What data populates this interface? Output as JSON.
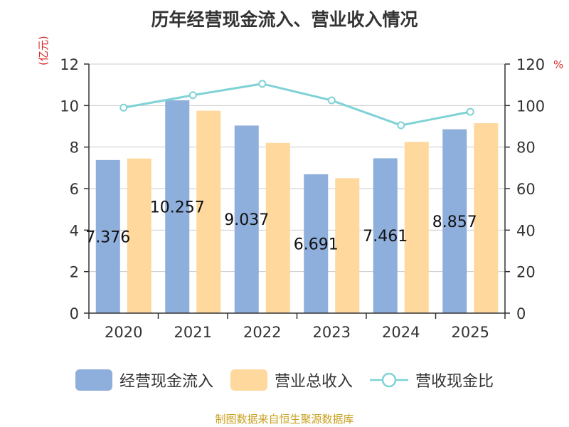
{
  "title": "历年经营现金流入、营业收入情况",
  "unit_left": "(亿元)",
  "unit_right": "%",
  "source": "制图数据来自恒生聚源数据库",
  "colors": {
    "cash": "#8eaedb",
    "revenue": "#fed89c",
    "ratio": "#7fd2d6"
  },
  "chart_data": {
    "type": "bar",
    "categories": [
      "2020",
      "2021",
      "2022",
      "2023",
      "2024",
      "2025"
    ],
    "series": [
      {
        "name": "经营现金流入",
        "values": [
          7.376,
          10.257,
          9.037,
          6.691,
          7.461,
          8.857
        ],
        "labels": [
          "7.376",
          "10.257",
          "9.037",
          "6.691",
          "7.461",
          "8.857"
        ],
        "axis": "left"
      },
      {
        "name": "营业总收入",
        "values": [
          7.45,
          9.75,
          8.2,
          6.5,
          8.25,
          9.15
        ],
        "axis": "left"
      },
      {
        "name": "营收现金比",
        "type": "line",
        "values": [
          99,
          105,
          110.5,
          102.5,
          90.5,
          97
        ],
        "axis": "right"
      }
    ],
    "ylim_left": [
      0,
      12
    ],
    "yticks_left": [
      0,
      2,
      4,
      6,
      8,
      10,
      12
    ],
    "ylim_right": [
      0,
      120
    ],
    "yticks_right": [
      0,
      20,
      40,
      60,
      80,
      100,
      120
    ],
    "grid": true,
    "legend": "bottom"
  }
}
